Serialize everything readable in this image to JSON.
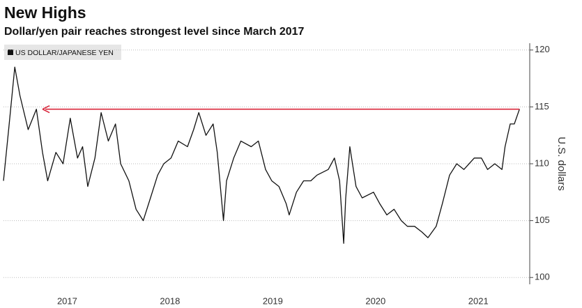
{
  "chart_data": {
    "type": "line",
    "title": "New Highs",
    "subtitle": "Dollar/yen pair reaches strongest level since March 2017",
    "y_label": "U.S. dollars",
    "x": [
      2016.88,
      2016.93,
      2016.99,
      2017.04,
      2017.12,
      2017.2,
      2017.26,
      2017.31,
      2017.39,
      2017.46,
      2017.53,
      2017.6,
      2017.65,
      2017.7,
      2017.77,
      2017.83,
      2017.9,
      2017.97,
      2018.02,
      2018.1,
      2018.17,
      2018.24,
      2018.31,
      2018.38,
      2018.44,
      2018.51,
      2018.58,
      2018.67,
      2018.73,
      2018.78,
      2018.85,
      2018.92,
      2018.96,
      2019.02,
      2019.05,
      2019.12,
      2019.19,
      2019.29,
      2019.36,
      2019.43,
      2019.49,
      2019.56,
      2019.63,
      2019.66,
      2019.73,
      2019.8,
      2019.87,
      2019.93,
      2020.04,
      2020.1,
      2020.15,
      2020.19,
      2020.21,
      2020.25,
      2020.31,
      2020.37,
      2020.48,
      2020.54,
      2020.61,
      2020.68,
      2020.75,
      2020.81,
      2020.88,
      2020.95,
      2021.01,
      2021.09,
      2021.15,
      2021.22,
      2021.29,
      2021.36,
      2021.46,
      2021.53,
      2021.59,
      2021.66,
      2021.73,
      2021.76,
      2021.81,
      2021.85,
      2021.9
    ],
    "series": [
      {
        "name": "US DOLLAR/JAPANESE YEN",
        "color": "#111111",
        "values": [
          108.5,
          113,
          118.5,
          116,
          113,
          114.8,
          111,
          108.5,
          111,
          110,
          114,
          110.5,
          111.5,
          108,
          110.5,
          114.5,
          112,
          113.5,
          110,
          108.5,
          106,
          105,
          107,
          109,
          110,
          110.5,
          112,
          111.5,
          113,
          114.5,
          112.5,
          113.5,
          111,
          105,
          108.5,
          110.5,
          112,
          111.5,
          112,
          109.5,
          108.5,
          108,
          106.5,
          105.5,
          107.5,
          108.5,
          108.5,
          109,
          109.5,
          110.5,
          108.5,
          103,
          107,
          111.5,
          108,
          107,
          107.5,
          106.5,
          105.5,
          106,
          105,
          104.5,
          104.5,
          104,
          103.5,
          104.5,
          106.5,
          109,
          110,
          109.5,
          110.5,
          110.5,
          109.5,
          110,
          109.5,
          111.5,
          113.5,
          113.5,
          114.8
        ]
      }
    ],
    "reference_line": {
      "value": 114.8,
      "from": 2017.26,
      "to": 2021.9,
      "color": "#d9253a"
    },
    "xlim": [
      2016.88,
      2022.0
    ],
    "xticks": [
      {
        "value": 2017.5,
        "label": "2017"
      },
      {
        "value": 2018.5,
        "label": "2018"
      },
      {
        "value": 2019.5,
        "label": "2019"
      },
      {
        "value": 2020.5,
        "label": "2020"
      },
      {
        "value": 2021.5,
        "label": "2021"
      }
    ],
    "ylim": [
      99.4,
      120.6
    ],
    "yticks": [
      100,
      105,
      110,
      115,
      120
    ],
    "grid": true
  }
}
